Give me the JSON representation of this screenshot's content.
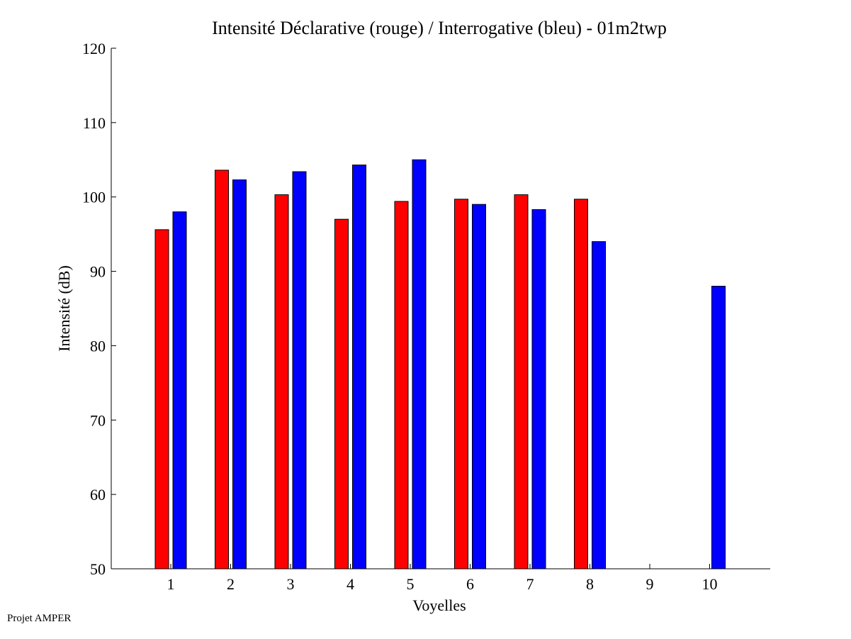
{
  "chart_data": {
    "type": "bar",
    "title": "Intensité Déclarative (rouge) / Interrogative (bleu) - 01m2twp",
    "xlabel": "Voyelles",
    "ylabel": "Intensité (dB)",
    "ylim": [
      50,
      120
    ],
    "yticks": [
      50,
      60,
      70,
      80,
      90,
      100,
      110,
      120
    ],
    "categories": [
      "1",
      "2",
      "3",
      "4",
      "5",
      "6",
      "7",
      "8",
      "9",
      "10"
    ],
    "series": [
      {
        "name": "Déclarative",
        "color": "#ff0000",
        "values": [
          95.6,
          103.6,
          100.3,
          97.0,
          99.4,
          99.7,
          100.3,
          99.7,
          null,
          null
        ]
      },
      {
        "name": "Interrogative",
        "color": "#0000ff",
        "values": [
          98.0,
          102.3,
          103.4,
          104.3,
          105.0,
          99.0,
          98.3,
          94.0,
          null,
          88.0
        ]
      }
    ],
    "grid": false,
    "legend": "none"
  },
  "footer": {
    "note": "Projet AMPER"
  }
}
